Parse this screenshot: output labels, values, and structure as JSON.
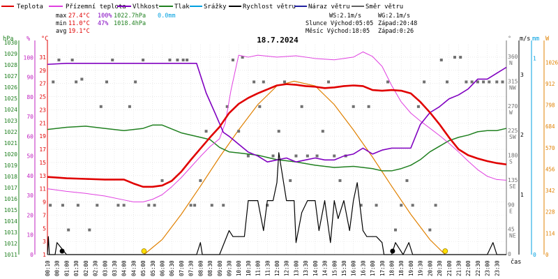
{
  "legend": [
    {
      "label": "Teplota",
      "color": "#e00000"
    },
    {
      "label": "Přízemní teplota",
      "color": "#e040e0"
    },
    {
      "label": "Vlhkost",
      "color": "#8000c0"
    },
    {
      "label": "Tlak",
      "color": "#208020"
    },
    {
      "label": "Srážky",
      "color": "#00a0e0"
    },
    {
      "label": "Rychlost větru",
      "color": "#000000"
    },
    {
      "label": "Náraz větru",
      "color": "#2020a0"
    },
    {
      "label": "Směr větru",
      "color": "#606060"
    }
  ],
  "stats": {
    "max": {
      "label": "max",
      "temp": "27.4°C",
      "hum": "100%",
      "press": "1022.7hPa",
      "rain": "0.0mm"
    },
    "min": {
      "label": "min",
      "temp": "11.0°C",
      "hum": "47%",
      "press": "1018.4hPa"
    },
    "avg": {
      "label": "avg",
      "temp": "19.1°C"
    }
  },
  "info": {
    "ws": "WS:2.1m/s",
    "wg": "WG:2.1m/s",
    "sun_rise": "Slunce Východ:05:05",
    "sun_set": "Západ:20:48",
    "moon_rise": "Měsíc  Východ:18:05",
    "moon_set": "Západ:0:26"
  },
  "date": "18.7.2024",
  "axis_units": {
    "hpa": "hPa",
    "pct": "%",
    "degc": "°C",
    "deg": "°",
    "ms": "m/s",
    "mm": "mm",
    "w": "W",
    "time": "čas"
  },
  "colors": {
    "hpa": "#208020",
    "pct": "#c020c0",
    "degc": "#e00000",
    "mm": "#00a0e0",
    "w": "#e08000",
    "wind": "#000000",
    "dir": "#707070"
  },
  "chart_data": {
    "type": "line",
    "x_label": "čas",
    "x_ticks": [
      "00:10",
      "00:30",
      "01:00",
      "01:30",
      "02:00",
      "02:30",
      "03:00",
      "03:30",
      "04:00",
      "04:30",
      "05:00",
      "05:30",
      "06:00",
      "06:30",
      "07:00",
      "07:30",
      "08:00",
      "08:30",
      "09:00",
      "09:30",
      "10:00",
      "10:30",
      "11:00",
      "11:30",
      "12:00",
      "12:30",
      "13:00",
      "13:30",
      "14:00",
      "14:30",
      "15:00",
      "15:30",
      "16:00",
      "16:30",
      "17:00",
      "17:30",
      "18:00",
      "18:30",
      "19:00",
      "19:30",
      "20:00",
      "20:30",
      "21:00",
      "21:30",
      "22:00",
      "22:30",
      "23:00",
      "23:30"
    ],
    "axes": {
      "pressure": {
        "unit": "hPa",
        "ticks": [
          "1011",
          "1012",
          "1013",
          "1014",
          "1015",
          "1016",
          "1017",
          "1018",
          "1019",
          "1020",
          "1021",
          "1022",
          "1023",
          "1024",
          "1025",
          "1026",
          "1027",
          "1028",
          "1029",
          "1030"
        ],
        "range": [
          1011,
          1029.8
        ]
      },
      "humidity": {
        "unit": "%",
        "ticks": [
          "0",
          "10",
          "20",
          "30",
          "40",
          "50",
          "60",
          "70",
          "80",
          "90",
          "100"
        ],
        "range": [
          0,
          106.5
        ]
      },
      "temperature": {
        "unit": "°C",
        "ticks": [
          "1",
          "3",
          "5",
          "7",
          "9",
          "11",
          "13",
          "15",
          "17",
          "19",
          "21",
          "23",
          "25",
          "27",
          "29",
          "31"
        ],
        "range": [
          1,
          32.9
        ]
      },
      "direction": {
        "unit": "°",
        "ticks": [
          "0",
          "45 NE",
          "90 E",
          "135 SE",
          "180 S",
          "225 SW",
          "270 W",
          "315 NW",
          "360 N"
        ],
        "range": [
          0,
          383
        ]
      },
      "wind": {
        "unit": "m/s",
        "ticks": [
          "1",
          "2",
          "3"
        ],
        "range": [
          0,
          3.5
        ]
      },
      "rain": {
        "unit": "mm",
        "ticks": [
          "0",
          "1"
        ],
        "range": [
          0,
          1.07
        ]
      },
      "radiation": {
        "unit": "W",
        "ticks": [
          "0",
          "114",
          "228",
          "342",
          "456",
          "570",
          "684",
          "798",
          "912",
          "1026"
        ],
        "range": [
          0,
          1120
        ]
      }
    },
    "series": [
      {
        "name": "Teplota",
        "axis": "temperature",
        "x": [
          0,
          0.5,
          1,
          2,
          3,
          4,
          4.5,
          5,
          5.5,
          6,
          6.5,
          7,
          7.5,
          8,
          8.5,
          9,
          9.5,
          10,
          10.5,
          11,
          11.5,
          12,
          12.5,
          13,
          13.5,
          14,
          14.5,
          15,
          15.5,
          16,
          16.5,
          17,
          17.5,
          18,
          18.5,
          19,
          19.5,
          20,
          20.5,
          21,
          21.5,
          22,
          22.5,
          23,
          23.5,
          24
        ],
        "y": [
          12.8,
          12.7,
          12.6,
          12.5,
          12.4,
          12.4,
          11.8,
          11.3,
          11.3,
          11.5,
          12.2,
          13.6,
          15.4,
          17.1,
          18.8,
          20.4,
          22.5,
          23.9,
          24.8,
          25.5,
          26.1,
          26.7,
          26.9,
          26.8,
          26.6,
          26.5,
          26.3,
          26.4,
          26.6,
          26.7,
          26.6,
          26.0,
          25.9,
          26.0,
          25.9,
          25.5,
          24.2,
          22.6,
          20.8,
          18.8,
          17.0,
          16.1,
          15.6,
          15.2,
          14.9,
          14.7
        ]
      },
      {
        "name": "Přízemní teplota",
        "axis": "temperature",
        "x": [
          0,
          1,
          2,
          3,
          4,
          4.5,
          5,
          5.5,
          6,
          6.5,
          7,
          7.5,
          8,
          8.5,
          9,
          9.3,
          9.6,
          10,
          10.5,
          11,
          12,
          13,
          14,
          15,
          16,
          16.5,
          17,
          17.5,
          18,
          18.5,
          19,
          19.5,
          20,
          20.5,
          21,
          21.5,
          22,
          22.5,
          23,
          23.5,
          24
        ],
        "y": [
          11.0,
          10.6,
          10.3,
          9.9,
          9.3,
          9.0,
          9.0,
          9.4,
          10.1,
          11.3,
          12.7,
          14.3,
          15.9,
          17.4,
          18.6,
          21,
          26,
          31.3,
          31.0,
          31.3,
          31.0,
          31.2,
          30.8,
          30.6,
          31.0,
          31.8,
          31.1,
          29.6,
          26.7,
          24.2,
          22.5,
          21.3,
          20.2,
          19.1,
          17.9,
          16.6,
          15.2,
          13.9,
          12.9,
          12.4,
          12.3
        ]
      },
      {
        "name": "Vlhkost",
        "axis": "humidity",
        "x": [
          0,
          1,
          2,
          3,
          4,
          5,
          6,
          7,
          7.8,
          8.3,
          8.8,
          9.2,
          9.5,
          10,
          10.5,
          11,
          11.5,
          12,
          12.5,
          13,
          13.5,
          14,
          14.5,
          15,
          15.5,
          16,
          16.5,
          17,
          17.5,
          18,
          18.5,
          19,
          19.5,
          20,
          20.5,
          21,
          21.5,
          22,
          22.5,
          23,
          23.5,
          24
        ],
        "y": [
          96.5,
          97,
          97,
          97,
          97,
          97,
          97,
          97,
          97,
          82,
          71,
          62,
          60,
          56,
          52,
          50,
          47,
          48,
          49,
          47,
          48,
          49,
          48,
          48,
          50,
          51,
          54,
          51,
          53,
          54,
          54,
          54,
          66,
          72,
          75,
          79,
          81,
          84,
          89,
          89,
          92,
          95
        ]
      },
      {
        "name": "Tlak",
        "axis": "pressure",
        "x": [
          0,
          1,
          2,
          3,
          4,
          5,
          5.5,
          6,
          7,
          8,
          8.5,
          9,
          9.5,
          10,
          11,
          12,
          13,
          14,
          15,
          16,
          17,
          17.5,
          18,
          18.5,
          19,
          19.5,
          20,
          20.5,
          21,
          21.5,
          22,
          22.5,
          23,
          23.5,
          24
        ],
        "y": [
          1022.2,
          1022.4,
          1022.5,
          1022.3,
          1022.1,
          1022.3,
          1022.6,
          1022.6,
          1021.9,
          1021.5,
          1021.3,
          1020.6,
          1020.2,
          1020.1,
          1019.9,
          1019.5,
          1019.3,
          1019.0,
          1018.8,
          1018.9,
          1018.7,
          1018.5,
          1018.5,
          1018.7,
          1019.0,
          1019.5,
          1020.2,
          1020.7,
          1021.2,
          1021.5,
          1021.7,
          1022.0,
          1022.1,
          1022.1,
          1022.3
        ]
      },
      {
        "name": "Rychlost větru",
        "axis": "wind",
        "x": [
          0,
          0.05,
          0.1,
          0.4,
          0.5,
          1,
          3,
          4,
          5,
          5.5,
          6,
          6.5,
          7,
          7.8,
          8,
          8.1,
          9,
          9.5,
          9.7,
          10.3,
          10.5,
          11,
          11.3,
          11.5,
          11.8,
          12,
          12.1,
          12.5,
          12.7,
          12.9,
          13,
          13.3,
          13.6,
          14,
          14.2,
          14.5,
          14.8,
          15,
          15.2,
          15.5,
          15.8,
          16,
          16.2,
          16.5,
          16.7,
          17.2,
          17.5,
          17.6,
          18,
          18.2,
          18.6,
          18.9,
          19.1,
          19.5,
          20,
          21,
          21.5,
          22,
          22.5,
          23,
          23.3,
          23.5,
          24
        ],
        "y": [
          0,
          0.3,
          0,
          0,
          0.2,
          0,
          0,
          0,
          0,
          0,
          0,
          0,
          0,
          0,
          0.2,
          0,
          0,
          0.4,
          0.3,
          0.3,
          0.9,
          0.9,
          0.4,
          0.9,
          0.9,
          1.2,
          1.7,
          0.9,
          0.9,
          0.9,
          0.2,
          0.7,
          0.9,
          0.9,
          0.4,
          0.9,
          0.2,
          0.9,
          0.6,
          0.9,
          0.4,
          0.9,
          1.2,
          0.4,
          0.3,
          0.3,
          0.2,
          0,
          0,
          0.2,
          0,
          0.2,
          0,
          0,
          0,
          0,
          0,
          0,
          0,
          0,
          0.2,
          0,
          0
        ]
      }
    ],
    "radiation": {
      "axis": "radiation",
      "x": [
        5.05,
        6,
        7,
        8,
        9,
        10,
        11,
        12,
        12.9,
        14,
        15,
        16,
        17,
        18,
        19,
        20,
        20.8
      ],
      "y": [
        0,
        80,
        215,
        365,
        520,
        665,
        800,
        900,
        925,
        900,
        800,
        665,
        520,
        365,
        215,
        80,
        0
      ]
    },
    "wind_dir_points": {
      "axis": "direction",
      "x": [
        0.15,
        0.3,
        0.6,
        0.8,
        1.1,
        1.3,
        1.5,
        1.6,
        1.8,
        2.2,
        2.6,
        2.8,
        3.1,
        3.4,
        3.7,
        4.0,
        4.3,
        4.6,
        5.0,
        5.3,
        5.6,
        6.0,
        6.4,
        6.8,
        7.1,
        7.3,
        7.5,
        7.7,
        8.0,
        8.3,
        8.6,
        9.2,
        9.4,
        9.7,
        10.0,
        10.2,
        10.5,
        10.8,
        11.1,
        11.3,
        11.5,
        11.8,
        12.1,
        12.4,
        12.7,
        13.0,
        13.3,
        13.6,
        14.1,
        14.4,
        14.7,
        15.0,
        15.3,
        15.6,
        16.0,
        16.4,
        16.8,
        17.2,
        17.8,
        18.2,
        18.5,
        18.8,
        19.1,
        19.4,
        19.7,
        20.0,
        20.3,
        20.6,
        20.9,
        21.3,
        21.6,
        21.9,
        22.2,
        22.5,
        22.8,
        23.1,
        23.5,
        23.8
      ],
      "y": [
        90,
        315,
        355,
        90,
        45,
        355,
        315,
        90,
        320,
        45,
        90,
        270,
        315,
        355,
        90,
        90,
        270,
        315,
        355,
        90,
        90,
        135,
        355,
        355,
        355,
        355,
        90,
        90,
        135,
        225,
        90,
        90,
        270,
        355,
        225,
        360,
        180,
        315,
        270,
        315,
        90,
        180,
        225,
        315,
        135,
        180,
        270,
        180,
        180,
        225,
        315,
        180,
        135,
        180,
        270,
        90,
        270,
        90,
        315,
        45,
        90,
        135,
        90,
        270,
        315,
        45,
        90,
        355,
        315,
        360,
        360,
        315,
        315,
        315,
        315,
        315,
        315,
        315
      ]
    },
    "markers": {
      "rain_dots": [
        {
          "x": 0.55,
          "y": 0
        }
      ],
      "sun_dots": [
        {
          "x": 5.05
        },
        {
          "x": 20.8
        }
      ],
      "moon_dots": [
        {
          "x": 18.05
        }
      ]
    }
  }
}
